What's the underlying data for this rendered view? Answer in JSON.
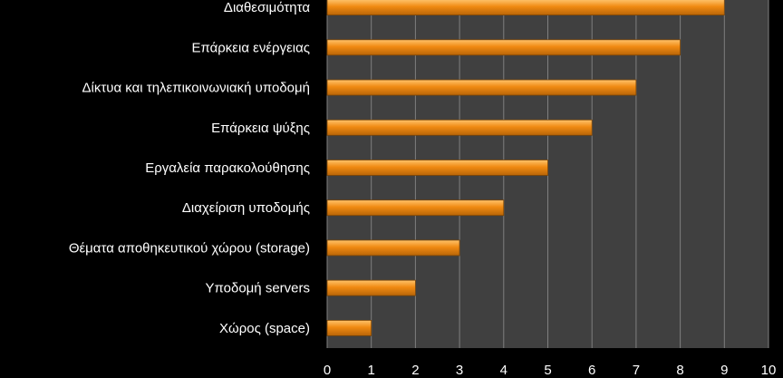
{
  "colors": {
    "background": "#000000",
    "plot_area": "#404040",
    "gridline": "#7f7f7f",
    "bar_top": "#ffc36b",
    "bar_mid": "#f08a12",
    "bar_bottom": "#b86508",
    "text": "#ffffff"
  },
  "chart_data": {
    "type": "bar",
    "orientation": "horizontal",
    "categories": [
      "Διαθεσιμότητα",
      "Επάρκεια ενέργειας",
      "Δίκτυα και τηλεπικοινωνιακή υποδομή",
      "Επάρκεια ψύξης",
      "Εργαλεία παρακολούθησης",
      "Διαχείριση υποδομής",
      "Θέματα αποθηκευτικού χώρου (storage)",
      "Υποδομή servers",
      "Χώρος (space)"
    ],
    "values": [
      9,
      8,
      7,
      6,
      5,
      4,
      3,
      2,
      1
    ],
    "xlim": [
      0,
      10
    ],
    "xticks": [
      "0",
      "1",
      "2",
      "3",
      "4",
      "5",
      "6",
      "7",
      "8",
      "9",
      "10"
    ],
    "grid": true,
    "legend": "none"
  }
}
